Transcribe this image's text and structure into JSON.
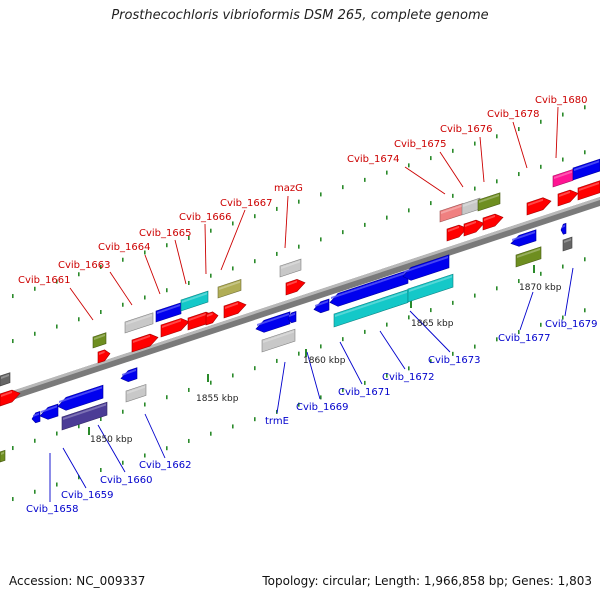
{
  "title": "Prosthecochloris vibrioformis DSM 265, complete genome",
  "footer": {
    "accession": "Accession: NC_009337",
    "info": "Topology: circular; Length: 1,966,858 bp; Genes: 1,803"
  },
  "colors": {
    "forward_label": "#cc0000",
    "reverse_label": "#0000cc",
    "backbone": "#8c8c8c",
    "tick": "#2a8a2a"
  },
  "kbp_labels": [
    "1850 kbp",
    "1855 kbp",
    "1860 kbp",
    "1865 kbp",
    "1870 kbp"
  ],
  "forward_labels": [
    "Cvib_1661",
    "Cvib_1663",
    "Cvib_1664",
    "Cvib_1665",
    "Cvib_1666",
    "Cvib_1667",
    "mazG",
    "Cvib_1674",
    "Cvib_1675",
    "Cvib_1676",
    "Cvib_1678",
    "Cvib_1680"
  ],
  "reverse_labels": [
    "Cvib_1658",
    "Cvib_1659",
    "Cvib_1660",
    "Cvib_1662",
    "trmE",
    "Cvib_1669",
    "Cvib_1671",
    "Cvib_1672",
    "Cvib_1673",
    "Cvib_1677",
    "Cvib_1679"
  ]
}
